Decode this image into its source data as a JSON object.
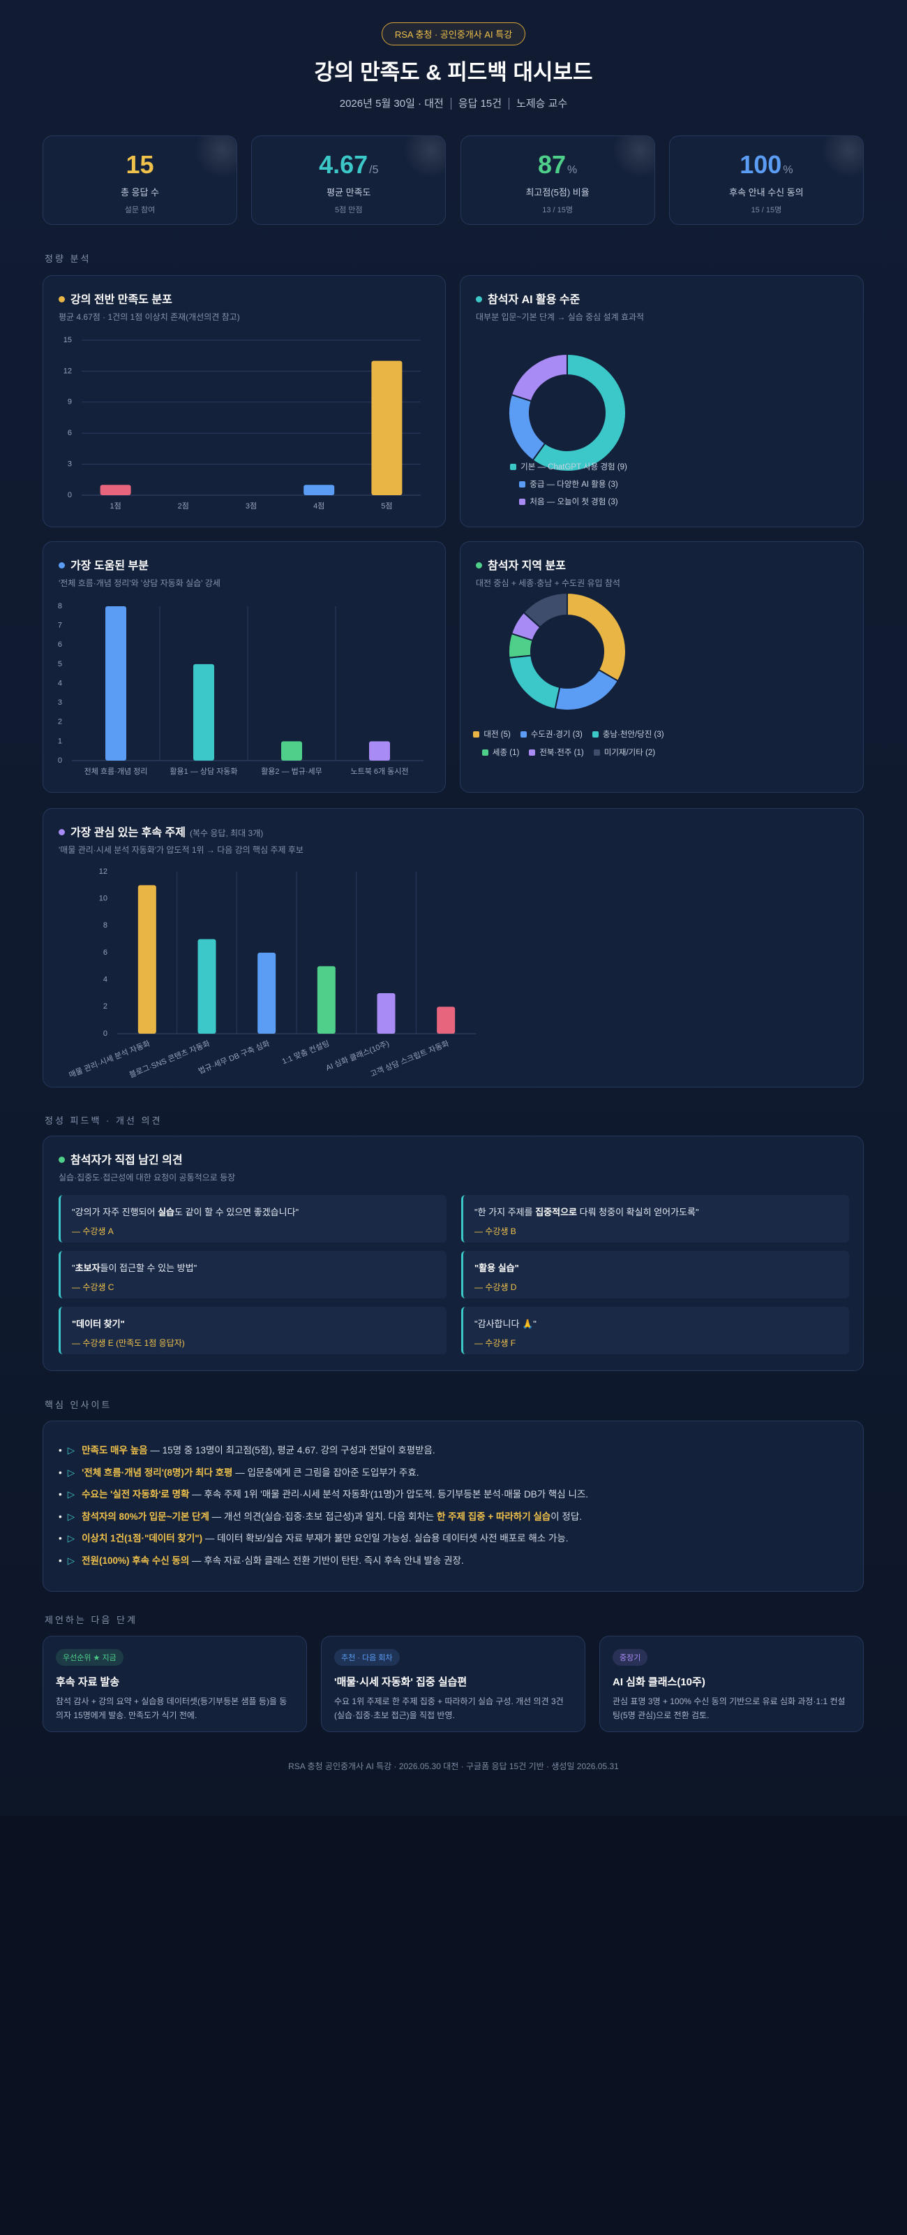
{
  "header": {
    "badge": "RSA 충청 · 공인중개사 AI 특강",
    "title": "강의 만족도 & 피드백 대시보드",
    "meta": [
      "2026년 5월 30일 · 대전",
      "응답 15건",
      "노제승 교수"
    ]
  },
  "kpis": [
    {
      "value": 15,
      "label": "총 응답 수",
      "sub": "설문 참여",
      "color": "#f0c24b"
    },
    {
      "value": 4.67,
      "unit": "/5",
      "label": "평균 만족도",
      "sub": "5점 만점",
      "color": "#3cc8c8"
    },
    {
      "value": 87,
      "unit": "%",
      "label": "최고점(5점) 비율",
      "sub": "13 / 15명",
      "color": "#4fd08a"
    },
    {
      "value": 100,
      "unit": "%",
      "label": "후속 안내 수신 동의",
      "sub": "15 / 15명",
      "color": "#5b9cf5"
    }
  ],
  "sections": {
    "quant": "정량 분석",
    "qual": "정성 피드백 · 개선 의견",
    "insight": "핵심 인사이트",
    "next": "제언하는 다음 단계"
  },
  "chart_data": [
    {
      "type": "bar",
      "title": "강의 전반 만족도 분포",
      "subtitle": "평균 4.67점 · 1건의 1점 이상치 존재(개선의견 참고)",
      "categories": [
        "1점",
        "2점",
        "3점",
        "4점",
        "5점"
      ],
      "values": [
        1,
        0,
        0,
        1,
        13
      ],
      "colors": [
        "#e8657e",
        null,
        null,
        "#5b9cf5",
        "#e9b646"
      ],
      "ylim": [
        0,
        15
      ],
      "yticks": [
        0,
        3,
        6,
        9,
        12,
        15
      ],
      "grid": "y"
    },
    {
      "type": "donut",
      "title": "참석자 AI 활용 수준",
      "subtitle": "대부분 입문~기본 단계 → 실습 중심 설계 효과적",
      "categories": [
        "기본 — ChatGPT 사용 경험",
        "중급 — 다양한 AI 활용",
        "처음 — 오늘이 첫 경험"
      ],
      "values": [
        9,
        3,
        3
      ],
      "value_labels": [
        "(9)",
        "(3)",
        "(3)"
      ],
      "colors": [
        "#3cc8c8",
        "#5b9cf5",
        "#a98bf5"
      ]
    },
    {
      "type": "bar",
      "title": "가장 도움된 부분",
      "subtitle": "'전체 흐름·개념 정리'와 '상담 자동화 실습' 강세",
      "categories": [
        "전체 흐름·개념 정리",
        "활용1 — 상담 자동화",
        "활용2 — 법규·세무",
        "노트북 6개 동시전"
      ],
      "values": [
        8,
        5,
        1,
        1
      ],
      "colors": [
        "#5b9cf5",
        "#3cc8c8",
        "#4fd08a",
        "#a98bf5"
      ],
      "ylim": [
        0,
        8
      ],
      "yticks": [
        0,
        1,
        2,
        3,
        4,
        5,
        6,
        7,
        8
      ],
      "grid": "x"
    },
    {
      "type": "donut",
      "title": "참석자 지역 분포",
      "subtitle": "대전 중심 + 세종·충남 + 수도권 유입 참석",
      "categories": [
        "대전",
        "수도권·경기",
        "충남·천안/당진",
        "세종",
        "전북·전주",
        "미기재/기타"
      ],
      "values": [
        5,
        3,
        3,
        1,
        1,
        2
      ],
      "value_labels": [
        "(5)",
        "(3)",
        "(3)",
        "(1)",
        "(1)",
        "(2)"
      ],
      "colors": [
        "#e9b646",
        "#5b9cf5",
        "#3cc8c8",
        "#4fd08a",
        "#a98bf5",
        "#3d4d6b"
      ]
    },
    {
      "type": "bar",
      "title": "가장 관심 있는 후속 주제",
      "note": "(복수 응답, 최대 3개)",
      "subtitle": "'매물 관리·시세 분석 자동화'가 압도적 1위 → 다음 강의 핵심 주제 후보",
      "categories": [
        "매물 관리·시세 분석 자동화",
        "블로그·SNS 콘텐츠 자동화",
        "법규·세무 DB 구축 심화",
        "1:1 맞춤 컨설팅",
        "AI 심화 클래스(10주)",
        "고객 상담 스크립트 자동화"
      ],
      "values": [
        11,
        7,
        6,
        5,
        3,
        2
      ],
      "colors": [
        "#e9b646",
        "#3cc8c8",
        "#5b9cf5",
        "#4fd08a",
        "#a98bf5",
        "#e8657e"
      ],
      "ylim": [
        0,
        12
      ],
      "yticks": [
        0,
        2,
        4,
        6,
        8,
        10,
        12
      ],
      "grid": "x"
    }
  ],
  "feedback": {
    "title": "참석자가 직접 남긴 의견",
    "subtitle": "실습·집중도·접근성에 대한 요청이 공통적으로 등장",
    "quotes": [
      {
        "parts": [
          {
            "plain": "\"강의가 자주 진행되어 "
          },
          {
            "strong": "실습"
          },
          {
            "plain": "도 같이 할 수 있으면 좋겠습니다\""
          }
        ],
        "author": "— 수강생 A"
      },
      {
        "parts": [
          {
            "plain": "\"한 가지 주제를 "
          },
          {
            "strong": "집중적으로"
          },
          {
            "plain": " 다뤄 청중이 확실히 얻어가도록\""
          }
        ],
        "author": "— 수강생 B"
      },
      {
        "parts": [
          {
            "plain": "\""
          },
          {
            "strong": "초보자"
          },
          {
            "plain": "들이 접근할 수 있는 방법\""
          }
        ],
        "author": "— 수강생 C"
      },
      {
        "parts": [
          {
            "strong": "\"활용 실습\""
          }
        ],
        "author": "— 수강생 D"
      },
      {
        "parts": [
          {
            "strong": "\"데이터 찾기\""
          }
        ],
        "author": "— 수강생 E (만족도 1점 응답자)"
      },
      {
        "parts": [
          {
            "plain": "\"감사합니다 🙏\""
          }
        ],
        "author": "— 수강생 F"
      }
    ]
  },
  "insights": [
    [
      {
        "strong": "만족도 매우 높음"
      },
      {
        "plain": " — 15명 중 13명이 최고점(5점), 평균 4.67. 강의 구성과 전달이 호평받음."
      }
    ],
    [
      {
        "strong": "'전체 흐름·개념 정리'(8명)가 최다 호평"
      },
      {
        "plain": " — 입문층에게 큰 그림을 잡아준 도입부가 주효."
      }
    ],
    [
      {
        "strong": "수요는 '실전 자동화'로 명확"
      },
      {
        "plain": " — 후속 주제 1위 '매물 관리·시세 분석 자동화'(11명)가 압도적. 등기부등본 분석·매물 DB가 핵심 니즈."
      }
    ],
    [
      {
        "strong": "참석자의 80%가 입문~기본 단계"
      },
      {
        "plain": " — 개선 의견(실습·집중·초보 접근성)과 일치. 다음 회차는 "
      },
      {
        "strong": "한 주제 집중 + 따라하기 실습"
      },
      {
        "plain": "이 정답."
      }
    ],
    [
      {
        "strong": "이상치 1건(1점·\"데이터 찾기\")"
      },
      {
        "plain": " — 데이터 확보/실습 자료 부재가 불만 요인일 가능성. 실습용 데이터셋 사전 배포로 해소 가능."
      }
    ],
    [
      {
        "strong": "전원(100%) 후속 수신 동의"
      },
      {
        "plain": " — 후속 자료·심화 클래스 전환 기반이 탄탄. 즉시 후속 안내 발송 권장."
      }
    ]
  ],
  "next_steps": [
    {
      "tag": "우선순위 ★ 지금",
      "tag_color": "#4fd08a",
      "title": "후속 자료 발송",
      "text": "참석 감사 + 강의 요약 + 실습용 데이터셋(등기부등본 샘플 등)을 동의자 15명에게 발송. 만족도가 식기 전에."
    },
    {
      "tag": "추천 · 다음 회차",
      "tag_color": "#5b9cf5",
      "title": "'매물·시세 자동화' 집중 실습편",
      "text": "수요 1위 주제로 한 주제 집중 + 따라하기 실습 구성. 개선 의견 3건(실습·집중·초보 접근)을 직접 반영."
    },
    {
      "tag": "중장기",
      "tag_color": "#a98bf5",
      "title": "AI 심화 클래스(10주)",
      "text": "관심 표명 3명 + 100% 수신 동의 기반으로 유료 심화 과정·1:1 컨설팅(5명 관심)으로 전환 검토."
    }
  ],
  "footer": "RSA 충청 공인중개사 AI 특강 · 2026.05.30 대전 · 구글폼 응답 15건 기반 · 생성일 2026.05.31"
}
